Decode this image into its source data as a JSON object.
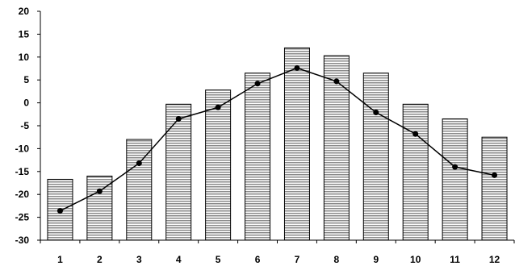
{
  "chart_data": {
    "type": "bar",
    "categories": [
      "1",
      "2",
      "3",
      "4",
      "5",
      "6",
      "7",
      "8",
      "9",
      "10",
      "11",
      "12"
    ],
    "series": [
      {
        "type": "bar",
        "values": [
          -16.7,
          -16.0,
          -8.0,
          -0.3,
          2.8,
          6.5,
          12.0,
          10.3,
          6.5,
          -0.3,
          -3.5,
          -7.5
        ]
      },
      {
        "type": "line",
        "values": [
          -23.6,
          -19.3,
          -13.2,
          -3.5,
          -1.0,
          4.2,
          7.6,
          4.7,
          -2.1,
          -6.8,
          -14.0,
          -15.8
        ]
      }
    ],
    "ylim": [
      -30,
      20
    ],
    "y_ticks": [
      "20",
      "15",
      "10",
      "5",
      "0",
      "-5",
      "-10",
      "-15",
      "-20",
      "-25",
      "-30"
    ],
    "title": "",
    "xlabel": "",
    "ylabel": "",
    "grid": false,
    "colors": {
      "bar_fill": "#9a9a9a",
      "bar_stripe": "#ffffff",
      "line": "#000000",
      "axis": "#000000"
    }
  }
}
